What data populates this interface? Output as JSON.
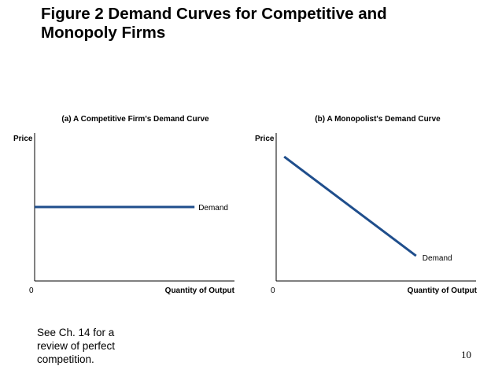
{
  "slide": {
    "title_line1": "Figure 2 Demand Curves for Competitive and",
    "title_line2": "Monopoly Firms",
    "note_line1": "See Ch. 14 for a",
    "note_line2": "review of perfect",
    "note_line3": "competition.",
    "page_number": "10",
    "line_color": "#1f4e8c"
  },
  "chart_data": [
    {
      "type": "line",
      "title": "(a) A Competitive Firm's Demand Curve",
      "xlabel": "Quantity of Output",
      "ylabel": "Price",
      "origin_label": "0",
      "xlim": [
        0,
        100
      ],
      "ylim": [
        0,
        100
      ],
      "grid": false,
      "series": [
        {
          "name": "Demand",
          "x": [
            0,
            80
          ],
          "y": [
            50,
            50
          ]
        }
      ]
    },
    {
      "type": "line",
      "title": "(b) A Monopolist's Demand Curve",
      "xlabel": "Quantity of Output",
      "ylabel": "Price",
      "origin_label": "0",
      "xlim": [
        0,
        100
      ],
      "ylim": [
        0,
        100
      ],
      "grid": false,
      "series": [
        {
          "name": "Demand",
          "x": [
            4,
            70
          ],
          "y": [
            84,
            17
          ]
        }
      ]
    }
  ]
}
